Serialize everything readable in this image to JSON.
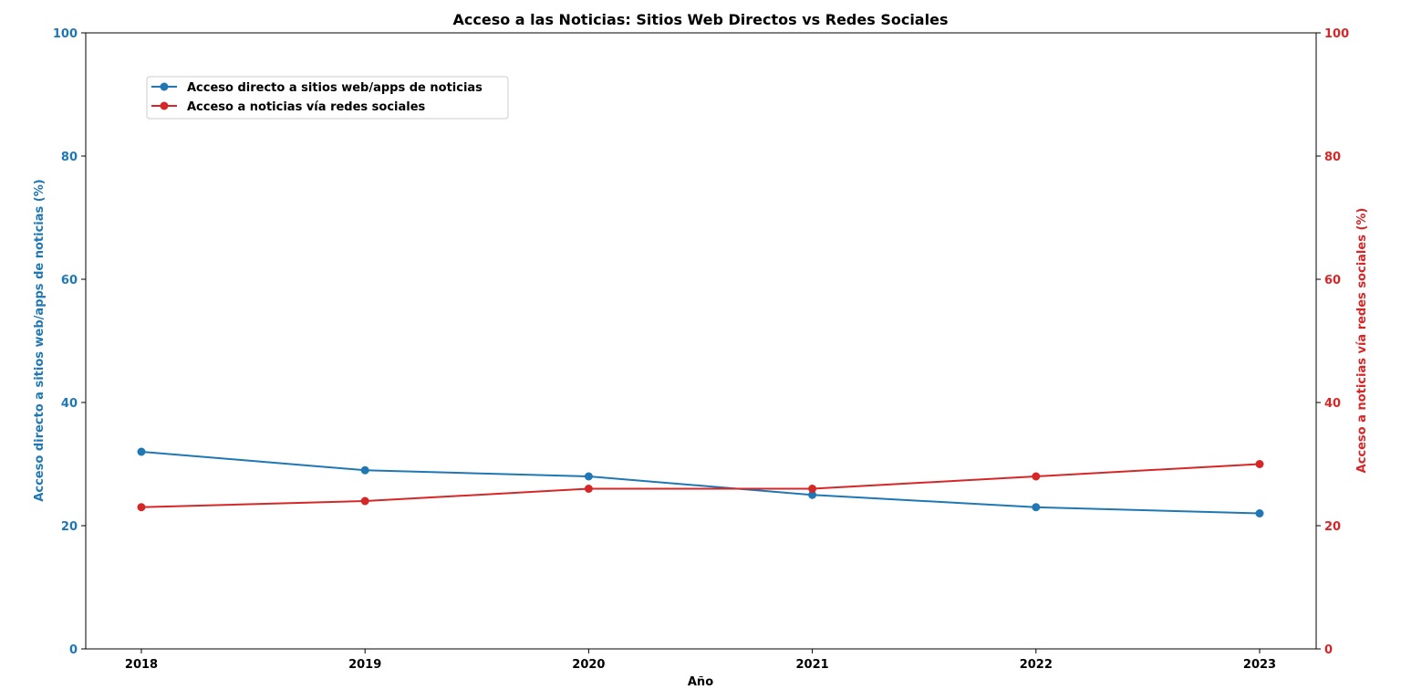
{
  "chart_data": {
    "type": "line",
    "title": "Acceso a las Noticias: Sitios Web Directos vs Redes Sociales",
    "xlabel": "Año",
    "ylabel_left": "Acceso directo a sitios web/apps de noticias (%)",
    "ylabel_right": "Acceso a noticias vía redes sociales (%)",
    "x": [
      "2018",
      "2019",
      "2020",
      "2021",
      "2022",
      "2023"
    ],
    "ylim_left": [
      0,
      100
    ],
    "ylim_right": [
      0,
      100
    ],
    "yticks": [
      "0",
      "20",
      "40",
      "60",
      "80",
      "100"
    ],
    "grid": false,
    "legend_position": "upper-left",
    "series": [
      {
        "name": "Acceso directo a sitios web/apps de noticias",
        "axis": "left",
        "color": "#1f77b4",
        "values": [
          32,
          29,
          28,
          25,
          23,
          22
        ]
      },
      {
        "name": "Acceso a noticias vía redes sociales",
        "axis": "right",
        "color": "#d62728",
        "values": [
          23,
          24,
          26,
          26,
          28,
          30
        ]
      }
    ]
  }
}
